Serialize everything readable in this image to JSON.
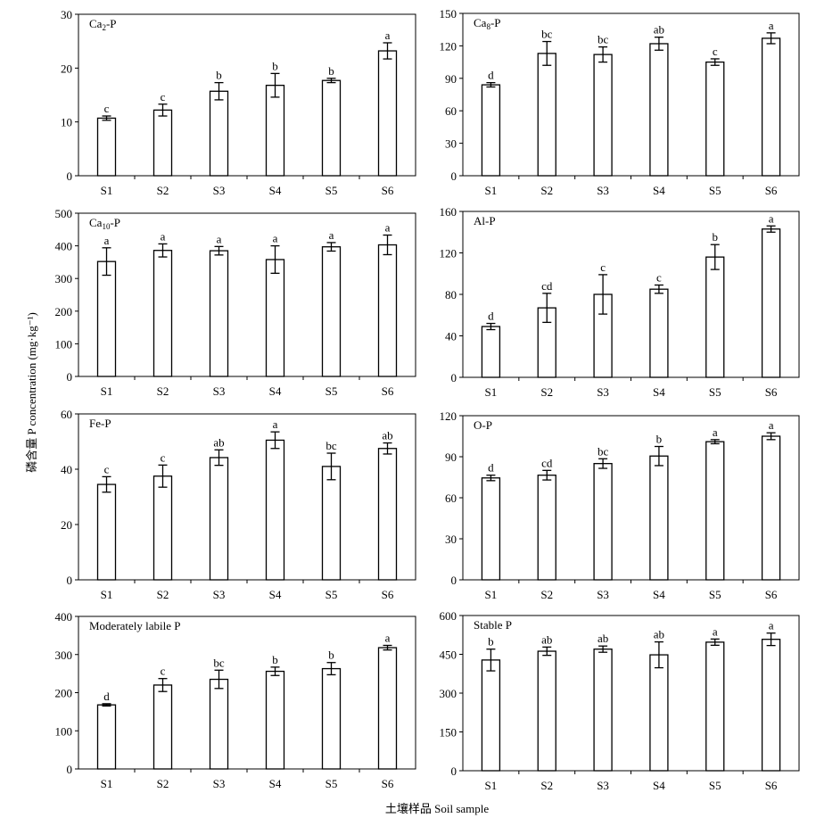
{
  "figure": {
    "ylabel": "磷含量 P concentration (mg·kg⁻¹)",
    "xlabel": "土壤样品 Soil sample"
  },
  "chart_data": [
    {
      "type": "bar",
      "title": "Ca2-P",
      "title_main": "Ca",
      "title_sub": "2",
      "title_tail": "-P",
      "categories": [
        "S1",
        "S2",
        "S3",
        "S4",
        "S5",
        "S6"
      ],
      "values": [
        10.7,
        12.2,
        15.7,
        16.8,
        17.7,
        23.2
      ],
      "errors": [
        0.4,
        1.1,
        1.6,
        2.2,
        0.4,
        1.5
      ],
      "letters": [
        "c",
        "c",
        "b",
        "b",
        "b",
        "a"
      ],
      "ylim": [
        0,
        30
      ],
      "yticks": [
        0,
        10,
        20,
        30
      ]
    },
    {
      "type": "bar",
      "title": "Ca8-P",
      "title_main": "Ca",
      "title_sub": "8",
      "title_tail": "-P",
      "categories": [
        "S1",
        "S2",
        "S3",
        "S4",
        "S5",
        "S6"
      ],
      "values": [
        84,
        113,
        112,
        122,
        105,
        127
      ],
      "errors": [
        2,
        11,
        7,
        6,
        3,
        5
      ],
      "letters": [
        "d",
        "bc",
        "bc",
        "ab",
        "c",
        "a"
      ],
      "ylim": [
        0,
        150
      ],
      "yticks": [
        0,
        30,
        60,
        90,
        120,
        150
      ]
    },
    {
      "type": "bar",
      "title": "Ca10-P",
      "title_main": "Ca",
      "title_sub": "10",
      "title_tail": "-P",
      "categories": [
        "S1",
        "S2",
        "S3",
        "S4",
        "S5",
        "S6"
      ],
      "values": [
        352,
        386,
        385,
        358,
        397,
        403
      ],
      "errors": [
        42,
        20,
        13,
        42,
        13,
        30
      ],
      "letters": [
        "a",
        "a",
        "a",
        "a",
        "a",
        "a"
      ],
      "ylim": [
        0,
        500
      ],
      "yticks": [
        0,
        100,
        200,
        300,
        400,
        500
      ]
    },
    {
      "type": "bar",
      "title": "Al-P",
      "title_main": "Al-P",
      "title_sub": "",
      "title_tail": "",
      "categories": [
        "S1",
        "S2",
        "S3",
        "S4",
        "S5",
        "S6"
      ],
      "values": [
        49,
        67,
        80,
        85,
        116,
        143
      ],
      "errors": [
        3,
        14,
        19,
        4,
        12,
        3
      ],
      "letters": [
        "d",
        "cd",
        "c",
        "c",
        "b",
        "a"
      ],
      "ylim": [
        0,
        160
      ],
      "yticks": [
        0,
        40,
        80,
        120,
        160
      ]
    },
    {
      "type": "bar",
      "title": "Fe-P",
      "title_main": "Fe-P",
      "title_sub": "",
      "title_tail": "",
      "categories": [
        "S1",
        "S2",
        "S3",
        "S4",
        "S5",
        "S6"
      ],
      "values": [
        34.5,
        37.5,
        44.2,
        50.5,
        41,
        47.5
      ],
      "errors": [
        2.8,
        4,
        2.8,
        3,
        4.8,
        2
      ],
      "letters": [
        "c",
        "c",
        "ab",
        "a",
        "bc",
        "ab"
      ],
      "ylim": [
        0,
        60
      ],
      "yticks": [
        0,
        20,
        40,
        60
      ]
    },
    {
      "type": "bar",
      "title": "O-P",
      "title_main": "O-P",
      "title_sub": "",
      "title_tail": "",
      "categories": [
        "S1",
        "S2",
        "S3",
        "S4",
        "S5",
        "S6"
      ],
      "values": [
        74.5,
        76.5,
        85,
        90.5,
        101,
        105
      ],
      "errors": [
        2,
        3.5,
        3.5,
        7,
        1.5,
        2.5
      ],
      "letters": [
        "d",
        "cd",
        "bc",
        "b",
        "a",
        "a"
      ],
      "ylim": [
        0,
        120
      ],
      "yticks": [
        0,
        30,
        60,
        90,
        120
      ]
    },
    {
      "type": "bar",
      "title": "Moderately  labile P",
      "title_main": "Moderately  labile P",
      "title_sub": "",
      "title_tail": "",
      "categories": [
        "S1",
        "S2",
        "S3",
        "S4",
        "S5",
        "S6"
      ],
      "values": [
        168,
        220,
        235,
        256,
        263,
        318
      ],
      "errors": [
        3,
        17,
        24,
        11,
        16,
        6
      ],
      "letters": [
        "d",
        "c",
        "bc",
        "b",
        "b",
        "a"
      ],
      "ylim": [
        0,
        400
      ],
      "yticks": [
        0,
        100,
        200,
        300,
        400
      ]
    },
    {
      "type": "bar",
      "title": "Stable P",
      "title_main": "Stable P",
      "title_sub": "",
      "title_tail": "",
      "categories": [
        "S1",
        "S2",
        "S3",
        "S4",
        "S5",
        "S6"
      ],
      "values": [
        428,
        462,
        470,
        448,
        497,
        508
      ],
      "errors": [
        42,
        16,
        12,
        50,
        12,
        24
      ],
      "letters": [
        "b",
        "ab",
        "ab",
        "ab",
        "a",
        "a"
      ],
      "ylim": [
        0,
        600
      ],
      "yticks": [
        0,
        150,
        300,
        450,
        600
      ]
    }
  ]
}
